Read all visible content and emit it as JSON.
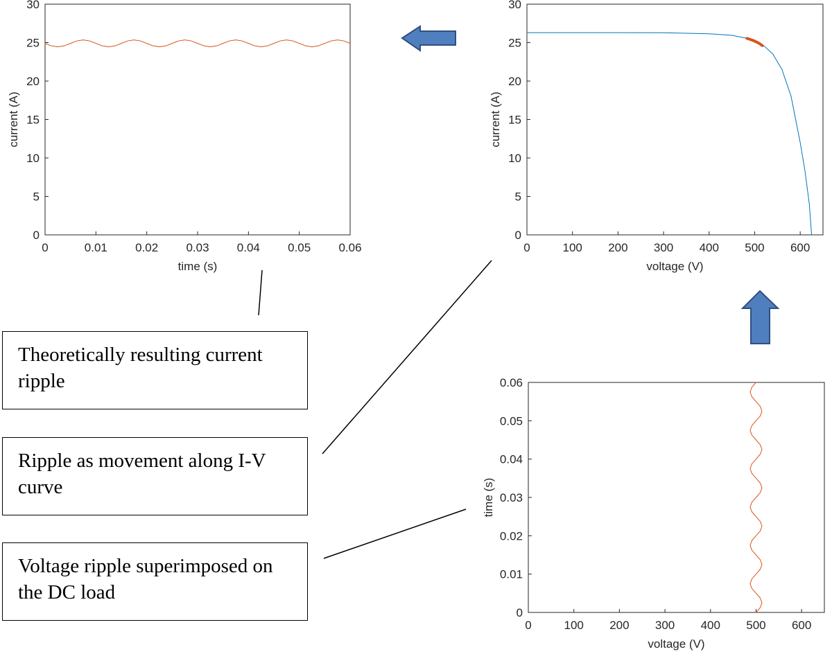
{
  "chart_data": [
    {
      "type": "line",
      "xlabel": "time (s)",
      "ylabel": "current (A)",
      "x": [
        0,
        0.00125,
        0.0025,
        0.00375,
        0.005,
        0.00625,
        0.0075,
        0.00875,
        0.01,
        0.01125,
        0.0125,
        0.01375,
        0.015,
        0.01625,
        0.0175,
        0.01875,
        0.02,
        0.02125,
        0.0225,
        0.02375,
        0.025,
        0.02625,
        0.0275,
        0.02875,
        0.03,
        0.03125,
        0.0325,
        0.03375,
        0.035,
        0.03625,
        0.0375,
        0.03875,
        0.04,
        0.04125,
        0.0425,
        0.04375,
        0.045,
        0.04625,
        0.0475,
        0.04875,
        0.05,
        0.05125,
        0.0525,
        0.05375,
        0.055,
        0.05625,
        0.0575,
        0.05875,
        0.06
      ],
      "series": [
        {
          "color": "#D95319",
          "width": 1,
          "values": [
            24.9,
            24.58,
            24.45,
            24.58,
            24.9,
            25.22,
            25.35,
            25.22,
            24.9,
            24.58,
            24.45,
            24.58,
            24.9,
            25.22,
            25.35,
            25.22,
            24.9,
            24.58,
            24.45,
            24.58,
            24.9,
            25.22,
            25.35,
            25.22,
            24.9,
            24.58,
            24.45,
            24.58,
            24.9,
            25.22,
            25.35,
            25.22,
            24.9,
            24.58,
            24.45,
            24.58,
            24.9,
            25.22,
            25.35,
            25.22,
            24.9,
            24.58,
            24.45,
            24.58,
            24.9,
            25.22,
            25.35,
            25.22,
            24.9
          ]
        }
      ],
      "xlim": [
        0,
        0.06
      ],
      "xticks": [
        0,
        0.01,
        0.02,
        0.03,
        0.04,
        0.05,
        0.06
      ],
      "ylim": [
        0,
        30
      ],
      "yticks": [
        0,
        5,
        10,
        15,
        20,
        25,
        30
      ]
    },
    {
      "type": "line",
      "xlabel": "voltage (V)",
      "ylabel": "current (A)",
      "series": [
        {
          "color": "#0072BD",
          "width": 1,
          "x": [
            0,
            100,
            200,
            300,
            400,
            450,
            480,
            500,
            520,
            540,
            560,
            580,
            600,
            610,
            620,
            625
          ],
          "values": [
            26.3,
            26.3,
            26.3,
            26.28,
            26.15,
            25.95,
            25.6,
            25.2,
            24.6,
            23.5,
            21.5,
            18,
            12,
            8.5,
            4,
            0
          ]
        },
        {
          "color": "#D95319",
          "width": 4,
          "x": [
            483,
            490,
            500,
            510,
            517
          ],
          "values": [
            25.55,
            25.42,
            25.2,
            24.9,
            24.6
          ]
        }
      ],
      "xlim": [
        0,
        650
      ],
      "xticks": [
        0,
        100,
        200,
        300,
        400,
        500,
        600
      ],
      "ylim": [
        0,
        30
      ],
      "yticks": [
        0,
        5,
        10,
        15,
        20,
        25,
        30
      ]
    },
    {
      "type": "line",
      "xlabel": "voltage (V)",
      "ylabel": "time (s)",
      "series": [
        {
          "color": "#D95319",
          "width": 1,
          "x": [
            500,
            509.2,
            513,
            509.2,
            500,
            490.8,
            487,
            490.8,
            500,
            509.2,
            513,
            509.2,
            500,
            490.8,
            487,
            490.8,
            500,
            509.2,
            513,
            509.2,
            500,
            490.8,
            487,
            490.8,
            500,
            509.2,
            513,
            509.2,
            500,
            490.8,
            487,
            490.8,
            500,
            509.2,
            513,
            509.2,
            500,
            490.8,
            487,
            490.8,
            500,
            509.2,
            513,
            509.2,
            500,
            490.8,
            487,
            490.8,
            500
          ],
          "values": [
            0,
            0.00125,
            0.0025,
            0.00375,
            0.005,
            0.00625,
            0.0075,
            0.00875,
            0.01,
            0.01125,
            0.0125,
            0.01375,
            0.015,
            0.01625,
            0.0175,
            0.01875,
            0.02,
            0.02125,
            0.0225,
            0.02375,
            0.025,
            0.02625,
            0.0275,
            0.02875,
            0.03,
            0.03125,
            0.0325,
            0.03375,
            0.035,
            0.03625,
            0.0375,
            0.03875,
            0.04,
            0.04125,
            0.0425,
            0.04375,
            0.045,
            0.04625,
            0.0475,
            0.04875,
            0.05,
            0.05125,
            0.0525,
            0.05375,
            0.055,
            0.05625,
            0.0575,
            0.05875,
            0.06
          ]
        }
      ],
      "xlim": [
        0,
        650
      ],
      "xticks": [
        0,
        100,
        200,
        300,
        400,
        500,
        600
      ],
      "ylim": [
        0,
        0.06
      ],
      "yticks": [
        0,
        0.01,
        0.02,
        0.03,
        0.04,
        0.05,
        0.06
      ]
    }
  ],
  "notes": [
    "Theoretically resulting current ripple",
    "Ripple as movement along I-V curve",
    "Voltage ripple superimposed on the DC load"
  ]
}
